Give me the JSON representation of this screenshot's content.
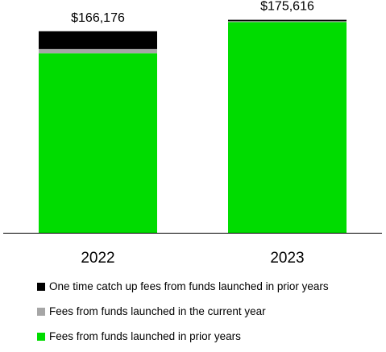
{
  "chart_data": {
    "type": "bar",
    "stacked": true,
    "categories": [
      "2022",
      "2023"
    ],
    "totals": [
      "$166,176",
      "$175,616"
    ],
    "ylim": [
      0,
      180000
    ],
    "grid": false,
    "legend_position": "bottom",
    "series": [
      {
        "name": "Fees from funds launched in prior years",
        "color": "#00dc00",
        "values": [
          148000,
          173800
        ]
      },
      {
        "name": "Fees from funds launched in the current year",
        "color": "#a6a6a6",
        "values": [
          3500,
          700
        ]
      },
      {
        "name": "One time catch up fees from funds launched in prior years",
        "color": "#000000",
        "values": [
          14676,
          1116
        ]
      }
    ]
  }
}
